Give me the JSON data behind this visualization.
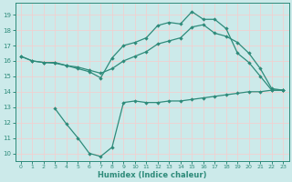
{
  "line1_x": [
    0,
    1,
    2,
    3,
    4,
    5,
    6,
    7,
    8,
    9,
    10,
    11,
    12,
    13,
    14,
    15,
    16,
    17,
    18,
    19,
    20,
    21,
    22,
    23
  ],
  "line1_y": [
    16.3,
    16.0,
    15.9,
    15.9,
    15.7,
    15.5,
    15.3,
    14.9,
    16.2,
    17.0,
    17.2,
    17.5,
    18.3,
    18.5,
    18.4,
    19.2,
    18.7,
    18.7,
    18.1,
    16.5,
    15.9,
    15.0,
    14.1,
    14.1
  ],
  "line2_x": [
    0,
    1,
    2,
    3,
    4,
    5,
    6,
    7,
    8,
    9,
    10,
    11,
    12,
    13,
    14,
    15,
    16,
    17,
    18,
    19,
    20,
    21,
    22,
    23
  ],
  "line2_y": [
    16.3,
    16.0,
    15.9,
    15.85,
    15.7,
    15.6,
    15.4,
    15.2,
    15.5,
    16.0,
    16.3,
    16.6,
    17.1,
    17.3,
    17.5,
    18.2,
    18.35,
    17.8,
    17.6,
    17.2,
    16.5,
    15.5,
    14.2,
    14.1
  ],
  "line3_x": [
    3,
    4,
    5,
    6,
    7,
    8,
    9,
    10,
    11,
    12,
    13,
    14,
    15,
    16,
    17,
    18,
    19,
    20,
    21,
    22,
    23
  ],
  "line3_y": [
    12.9,
    11.9,
    11.0,
    10.0,
    9.8,
    10.4,
    13.3,
    13.4,
    13.3,
    13.3,
    13.4,
    13.4,
    13.5,
    13.6,
    13.7,
    13.8,
    13.9,
    14.0,
    14.0,
    14.1,
    14.1
  ],
  "color": "#2e8b7a",
  "bg_color": "#cceaea",
  "grid_color": "#e8f8f8",
  "xlabel": "Humidex (Indice chaleur)",
  "ylim": [
    9.5,
    19.75
  ],
  "xlim": [
    -0.5,
    23.5
  ],
  "yticks": [
    10,
    11,
    12,
    13,
    14,
    15,
    16,
    17,
    18,
    19
  ],
  "xticks": [
    0,
    1,
    2,
    3,
    4,
    5,
    6,
    7,
    8,
    9,
    10,
    11,
    12,
    13,
    14,
    15,
    16,
    17,
    18,
    19,
    20,
    21,
    22,
    23
  ],
  "marker": "D",
  "markersize": 2.2,
  "linewidth": 0.9
}
